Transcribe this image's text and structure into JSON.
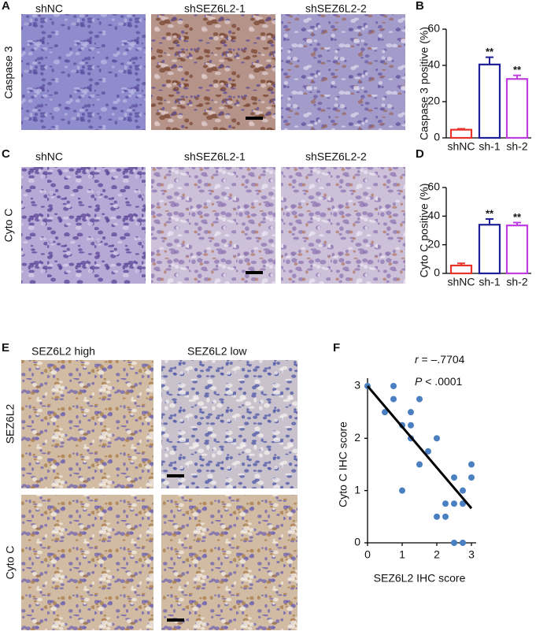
{
  "panel_letters": [
    "A",
    "B",
    "C",
    "D",
    "E",
    "F"
  ],
  "micrographs": {
    "caspase": {
      "stain": "Caspase 3",
      "columns": [
        "shNC",
        "shSEZ6L2-1",
        "shSEZ6L2-2"
      ]
    },
    "cyto": {
      "stain": "Cyto C",
      "columns": [
        "shNC",
        "shSEZ6L2-1",
        "shSEZ6L2-2"
      ]
    },
    "tissue": {
      "columns": [
        "SEZ6L2 high",
        "SEZ6L2 low"
      ],
      "rows": [
        "SEZ6L2",
        "Cyto C"
      ]
    }
  },
  "chart_data": [
    {
      "type": "bar",
      "y_label": "Caspase 3 positive (%)",
      "categories": [
        "shNC",
        "sh-1",
        "sh-2"
      ],
      "values": [
        4.5,
        40.5,
        32.5
      ],
      "errors": [
        0.5,
        4,
        2
      ],
      "significance": [
        null,
        "**",
        "**"
      ],
      "colors": [
        "#e8332a",
        "#1f1f9a",
        "#c03ee0"
      ],
      "ylim": [
        0,
        60
      ],
      "yticks": [
        0,
        20,
        40,
        60
      ]
    },
    {
      "type": "bar",
      "y_label": "Cyto C positive (%)",
      "categories": [
        "shNC",
        "sh-1",
        "sh-2"
      ],
      "values": [
        5.5,
        34,
        33.5
      ],
      "errors": [
        1.5,
        4,
        2
      ],
      "significance": [
        null,
        "**",
        "**"
      ],
      "colors": [
        "#e8332a",
        "#1f1f9a",
        "#c03ee0"
      ],
      "ylim": [
        0,
        60
      ],
      "yticks": [
        0,
        20,
        40,
        60
      ]
    },
    {
      "type": "scatter",
      "x_label": "SEZ6L2 IHC score",
      "y_label": "Cyto C IHC score",
      "annotations": [
        {
          "symbol": "r",
          "text": " = –.7704"
        },
        {
          "symbol": "P",
          "text": " < .0001"
        }
      ],
      "color": "#4a7fc1",
      "x": [
        0,
        0.5,
        0.75,
        0.75,
        1,
        1,
        1.25,
        1.25,
        1.25,
        1.5,
        1.5,
        1.75,
        2,
        2,
        2.25,
        2.25,
        2.5,
        2.5,
        2.5,
        2.75,
        2.75,
        2.75,
        3,
        3
      ],
      "y": [
        3,
        2.5,
        3,
        2.75,
        2.25,
        1,
        2.5,
        2.25,
        2,
        2.75,
        1.5,
        1.75,
        2,
        0.5,
        0.75,
        0.5,
        1.25,
        0.75,
        0,
        1,
        0.75,
        0,
        1.5,
        1.25
      ],
      "fit_line": {
        "x": [
          0,
          3
        ],
        "y": [
          3,
          0.66
        ]
      },
      "xlim": [
        0,
        3
      ],
      "ylim": [
        0,
        3
      ],
      "xticks": [
        0,
        1,
        2,
        3
      ],
      "yticks": [
        0,
        1,
        2,
        3
      ]
    }
  ]
}
